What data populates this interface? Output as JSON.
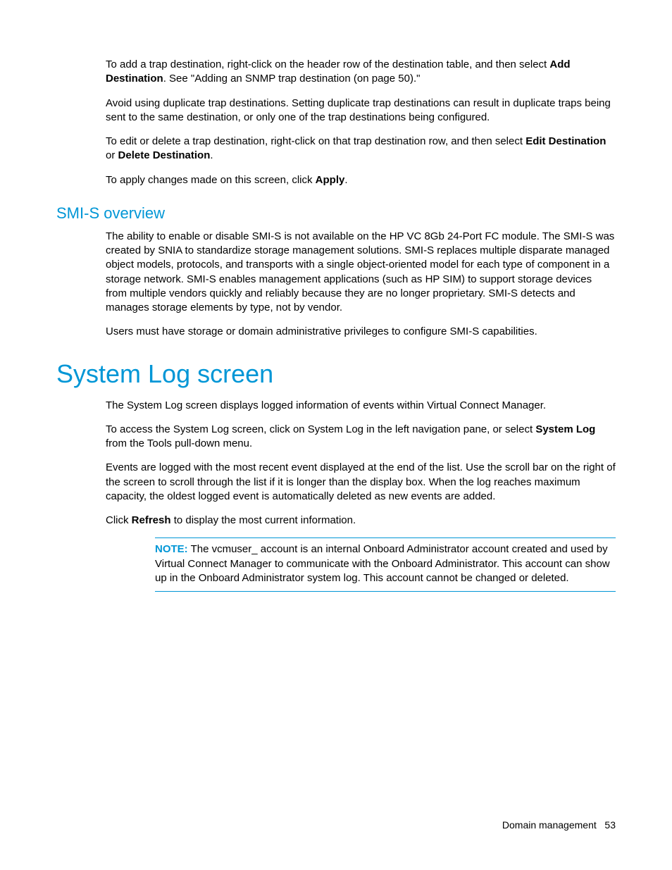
{
  "colors": {
    "accent": "#0096d6",
    "text": "#000000",
    "background": "#ffffff"
  },
  "typography": {
    "body_fontsize_pt": 11,
    "h3_fontsize_pt": 16,
    "h1_fontsize_pt": 27,
    "note_label_weight": "bold"
  },
  "trap": {
    "p1_a": "To add a trap destination, right-click on the header row of the destination table, and then select ",
    "p1_bold": "Add Destination",
    "p1_b": ". See \"Adding an SNMP trap destination (on page 50).\"",
    "p2": "Avoid using duplicate trap destinations. Setting duplicate trap destinations can result in duplicate traps being sent to the same destination, or only one of the trap destinations being configured.",
    "p3_a": "To edit or delete a trap destination, right-click on that trap destination row, and then select ",
    "p3_bold1": "Edit Destination",
    "p3_mid": " or ",
    "p3_bold2": "Delete Destination",
    "p3_end": ".",
    "p4_a": "To apply changes made on this screen, click ",
    "p4_bold": "Apply",
    "p4_end": "."
  },
  "smis": {
    "heading": "SMI-S overview",
    "p1": "The ability to enable or disable SMI-S is not available on the HP VC 8Gb 24-Port FC module. The SMI-S was created by SNIA to standardize storage management solutions. SMI-S replaces multiple disparate managed object models, protocols, and transports with a single object-oriented model for each type of component in a storage network. SMI-S enables management applications (such as HP SIM) to support storage devices from multiple vendors quickly and reliably because they are no longer proprietary. SMI-S detects and manages storage elements by type, not by vendor.",
    "p2": "Users must have storage or domain administrative privileges to configure SMI-S capabilities."
  },
  "syslog": {
    "heading": "System Log screen",
    "p1": "The System Log screen displays logged information of events within Virtual Connect Manager.",
    "p2_a": "To access the System Log screen, click on System Log in the left navigation pane, or select ",
    "p2_bold": "System Log",
    "p2_b": " from the Tools pull-down menu.",
    "p3": "Events are logged with the most recent event displayed at the end of the list. Use the scroll bar on the right of the screen to scroll through the list if it is longer than the display box. When the log reaches maximum capacity, the oldest logged event is automatically deleted as new events are added.",
    "p4_a": "Click ",
    "p4_bold": "Refresh",
    "p4_b": " to display the most current information.",
    "note_label": "NOTE:",
    "note_body": "  The vcmuser_ account is an internal Onboard Administrator account created and used by Virtual Connect Manager to communicate with the Onboard Administrator. This account can show up in the Onboard Administrator system log. This account cannot be changed or deleted."
  },
  "footer": {
    "section": "Domain management",
    "page": "53"
  }
}
